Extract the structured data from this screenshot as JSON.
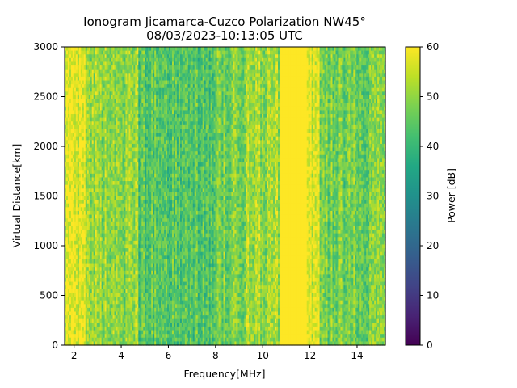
{
  "chart_data": {
    "type": "heatmap",
    "title": "Ionogram Jicamarca-Cuzco Polarization NW45°",
    "subtitle": "08/03/2023-10:13:05 UTC",
    "xlabel": "Frequency[MHz]",
    "ylabel": "Virtual Distance[km]",
    "xlim": [
      1.6,
      15.2
    ],
    "ylim": [
      0,
      3000
    ],
    "x_ticks": [
      2,
      4,
      6,
      8,
      10,
      12,
      14
    ],
    "y_ticks": [
      0,
      500,
      1000,
      1500,
      2000,
      2500,
      3000
    ],
    "colorbar": {
      "label": "Power [dB]",
      "range": [
        0,
        60
      ],
      "ticks": [
        0,
        10,
        20,
        30,
        40,
        50,
        60
      ],
      "colormap": "viridis"
    },
    "approx_column_power_db": [
      {
        "freq_mhz": [
          1.6,
          2.5
        ],
        "power_db": 56
      },
      {
        "freq_mhz": [
          2.5,
          4.7
        ],
        "power_db": 50
      },
      {
        "freq_mhz": [
          4.7,
          8.0
        ],
        "power_db": 44
      },
      {
        "freq_mhz": [
          8.0,
          9.2
        ],
        "power_db": 48
      },
      {
        "freq_mhz": [
          9.2,
          10.7
        ],
        "power_db": 51
      },
      {
        "freq_mhz": [
          10.7,
          11.9
        ],
        "power_db": 60
      },
      {
        "freq_mhz": [
          11.9,
          12.4
        ],
        "power_db": 57
      },
      {
        "freq_mhz": [
          12.4,
          15.2
        ],
        "power_db": 47
      }
    ],
    "grid": false
  }
}
